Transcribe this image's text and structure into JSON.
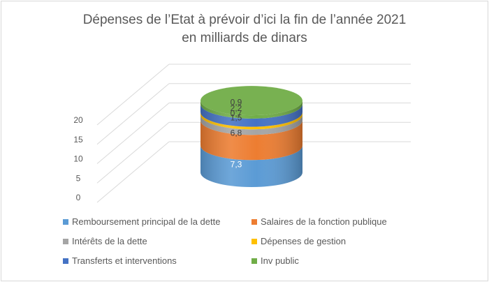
{
  "chart_data": {
    "type": "bar",
    "subtype": "3d-stacked-cylinder",
    "title": [
      "Dépenses de l’Etat à prévoir d’ici la fin de l’année 2021",
      "en milliards de dinars"
    ],
    "ylim": [
      0,
      20
    ],
    "yticks": [
      "0",
      "5",
      "10",
      "15",
      "20"
    ],
    "grid": true,
    "legend_position": "bottom",
    "series": [
      {
        "name": "Remboursement principal de la dette",
        "value": 7.3,
        "label": "7,3",
        "color": "#5b9bd5",
        "label_color": "#ffffff"
      },
      {
        "name": "Salaires de la fonction publique",
        "value": 6.8,
        "label": "6,8",
        "color": "#ed7d31",
        "label_color": "#404040"
      },
      {
        "name": "Intérêts de la dette",
        "value": 1.5,
        "label": "1,5",
        "color": "#a5a5a5",
        "label_color": "#404040"
      },
      {
        "name": "Dépenses de gestion",
        "value": 0.7,
        "label": "0,7",
        "color": "#ffc000",
        "label_color": "#404040"
      },
      {
        "name": "Transferts et interventions",
        "value": 2.2,
        "label": "2,2",
        "color": "#4472c4",
        "label_color": "#404040"
      },
      {
        "name": "Inv public",
        "value": 0.9,
        "label": "0,9",
        "color": "#70ad47",
        "label_color": "#404040"
      }
    ]
  }
}
